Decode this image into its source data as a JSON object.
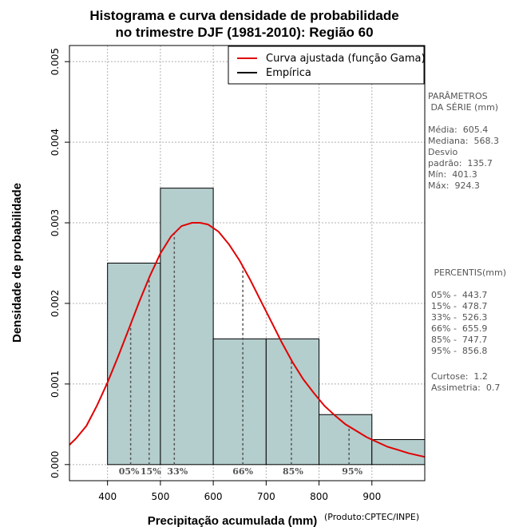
{
  "chart_data": {
    "type": "histogram",
    "title": [
      "Histograma e curva densidade de probabilidade",
      "no trimestre DJF (1981-2010): Região 60"
    ],
    "xlabel": "Precipitação acumulada (mm)",
    "ylabel": "Densidade de probabilidade",
    "credit": "(Produto:CPTEC/INPE)",
    "xlim": [
      328,
      1000
    ],
    "ylim": [
      -0.0002,
      0.0052
    ],
    "x_ticks": [
      400,
      500,
      600,
      700,
      800,
      900
    ],
    "y_ticks": [
      0.0,
      0.001,
      0.002,
      0.003,
      0.004,
      0.005
    ],
    "y_tick_labels": [
      "0.000",
      "0.001",
      "0.002",
      "0.003",
      "0.004",
      "0.005"
    ],
    "grid": true,
    "bars": [
      {
        "x0": 400,
        "x1": 500,
        "density": 0.0025
      },
      {
        "x0": 500,
        "x1": 600,
        "density": 0.00343
      },
      {
        "x0": 600,
        "x1": 700,
        "density": 0.00156
      },
      {
        "x0": 700,
        "x1": 800,
        "density": 0.00156
      },
      {
        "x0": 800,
        "x1": 900,
        "density": 0.00062
      },
      {
        "x0": 900,
        "x1": 1000,
        "density": 0.00031
      }
    ],
    "fitted_curve": {
      "name": "Curva ajustada (função Gama)",
      "color": "#e00000",
      "x": [
        328,
        340,
        360,
        380,
        400,
        420,
        440,
        460,
        480,
        500,
        520,
        540,
        560,
        575,
        590,
        610,
        630,
        650,
        670,
        690,
        710,
        730,
        750,
        770,
        790,
        810,
        830,
        850,
        870,
        890,
        910,
        930,
        950,
        970,
        1000
      ],
      "y": [
        0.000245,
        0.00032,
        0.00048,
        0.00073,
        0.00102,
        0.00134,
        0.00168,
        0.00202,
        0.00234,
        0.00262,
        0.00283,
        0.00296,
        0.003,
        0.003,
        0.00298,
        0.00289,
        0.00273,
        0.00253,
        0.00229,
        0.00203,
        0.00177,
        0.00151,
        0.00127,
        0.00106,
        0.00089,
        0.00073,
        0.00061,
        0.0005,
        0.00042,
        0.00034,
        0.00028,
        0.00022,
        0.00018,
        0.00014,
        9.5e-05
      ]
    },
    "empirical": {
      "name": "Empírica",
      "color": "#000000"
    },
    "legend": {
      "position": "top-right",
      "entries": [
        {
          "label": "Curva ajustada (função Gama)",
          "color": "#e00000"
        },
        {
          "label": "Empírica",
          "color": "#000000"
        }
      ]
    },
    "percentile_markers": [
      {
        "label": "05%",
        "x": 443.7
      },
      {
        "label": "15%",
        "x": 478.7
      },
      {
        "label": "33%",
        "x": 526.3
      },
      {
        "label": "66%",
        "x": 655.9
      },
      {
        "label": "85%",
        "x": 747.7
      },
      {
        "label": "95%",
        "x": 856.8
      }
    ],
    "bar_fill": "#b4cdcd",
    "side_panel": {
      "params_title": [
        "PARÂMETROS",
        " DA SÉRIE (mm)"
      ],
      "params": [
        "Média:  605.4",
        "Mediana:  568.3",
        "Desvio",
        "padrão:  135.7",
        "Mín:  401.3",
        "Máx:  924.3"
      ],
      "percentis_title": " PERCENTIS(mm)",
      "percentis": [
        "05% -  443.7",
        "15% -  478.7",
        "33% -  526.3",
        "66% -  655.9",
        "85% -  747.7",
        "95% -  856.8"
      ],
      "stats": [
        "Curtose:  1.2",
        "Assimetria:  0.7"
      ]
    }
  }
}
